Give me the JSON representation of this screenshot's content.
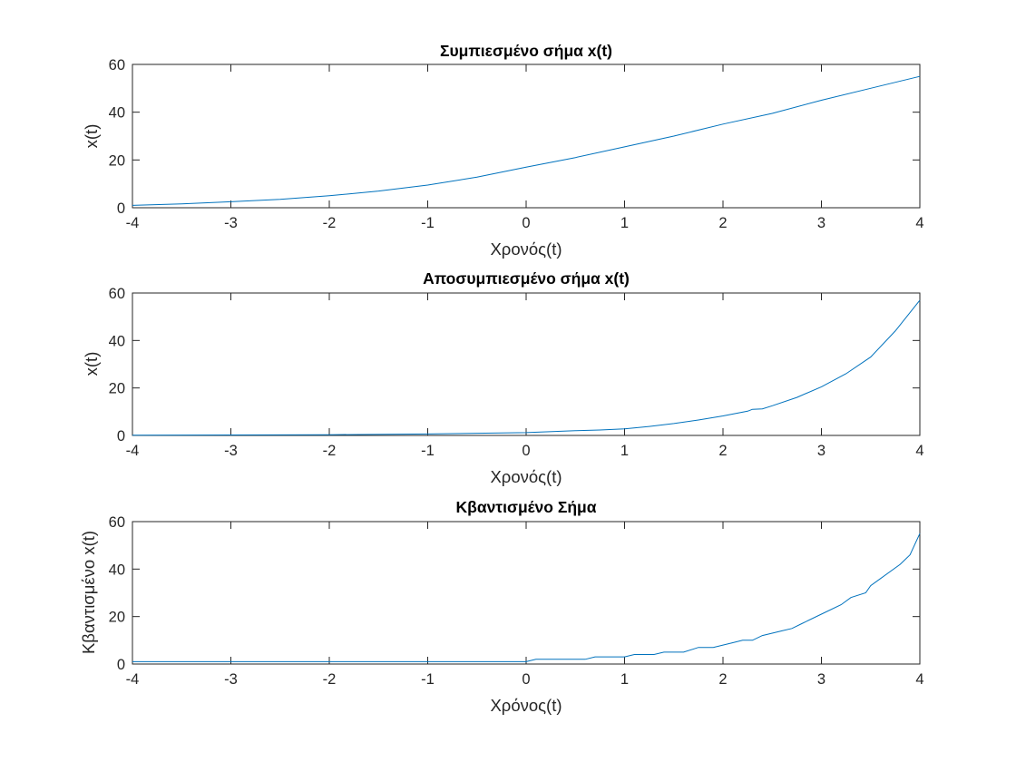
{
  "colors": {
    "series": "#0072BD",
    "axis": "#262626",
    "background": "#ffffff"
  },
  "chart_data": [
    {
      "type": "line",
      "title": "Συμπιεσμένο σήμα x(t)",
      "xlabel": "Χρονός(t)",
      "ylabel": "x(t)",
      "xlim": [
        -4,
        4
      ],
      "ylim": [
        0,
        60
      ],
      "xticks": [
        -4,
        -3,
        -2,
        -1,
        0,
        1,
        2,
        3,
        4
      ],
      "yticks": [
        0,
        20,
        40,
        60
      ],
      "grid": false,
      "series": [
        {
          "x": [
            -4,
            -3.5,
            -3,
            -2.5,
            -2,
            -1.5,
            -1,
            -0.5,
            0,
            0.5,
            1,
            1.5,
            2,
            2.5,
            3,
            3.5,
            4
          ],
          "y": [
            1.0,
            1.6,
            2.5,
            3.5,
            5.0,
            7.0,
            9.5,
            12.8,
            17.0,
            21.0,
            25.5,
            30.0,
            35.0,
            39.5,
            45.0,
            50.0,
            55.0
          ]
        }
      ]
    },
    {
      "type": "line",
      "title": "Αποσυμπιεσμένο σήμα x(t)",
      "xlabel": "Χρονός(t)",
      "ylabel": "x(t)",
      "xlim": [
        -4,
        4
      ],
      "ylim": [
        0,
        60
      ],
      "xticks": [
        -4,
        -3,
        -2,
        -1,
        0,
        1,
        2,
        3,
        4
      ],
      "yticks": [
        0,
        20,
        40,
        60
      ],
      "grid": false,
      "series": [
        {
          "x": [
            -4,
            -3,
            -2,
            -1,
            -0.5,
            0,
            0.5,
            0.75,
            1,
            1.25,
            1.5,
            1.75,
            2,
            2.25,
            2.3,
            2.4,
            2.5,
            2.75,
            3,
            3.25,
            3.5,
            3.75,
            4
          ],
          "y": [
            0.1,
            0.2,
            0.3,
            0.6,
            0.9,
            1.2,
            2.0,
            2.3,
            2.8,
            3.8,
            5.0,
            6.5,
            8.2,
            10.2,
            11.0,
            11.2,
            12.5,
            16.0,
            20.5,
            26.0,
            33.0,
            44.0,
            57.0
          ]
        }
      ]
    },
    {
      "type": "line",
      "title": "Κβαντισμένο Σήμα",
      "xlabel": "Χρόνος(t)",
      "ylabel": "Κβαντισμένο x(t)",
      "xlim": [
        -4,
        4
      ],
      "ylim": [
        0,
        60
      ],
      "xticks": [
        -4,
        -3,
        -2,
        -1,
        0,
        1,
        2,
        3,
        4
      ],
      "yticks": [
        0,
        20,
        40,
        60
      ],
      "grid": false,
      "series": [
        {
          "x": [
            -4,
            0.0,
            0.1,
            0.6,
            0.7,
            1.0,
            1.1,
            1.3,
            1.4,
            1.6,
            1.75,
            1.9,
            2.1,
            2.2,
            2.3,
            2.4,
            2.6,
            2.7,
            2.8,
            3.0,
            3.2,
            3.3,
            3.45,
            3.5,
            3.6,
            3.8,
            3.9,
            4.0
          ],
          "y": [
            1,
            1,
            2,
            2,
            3,
            3,
            4,
            4,
            5,
            5,
            7,
            7,
            9,
            10,
            10,
            12,
            14,
            15,
            17,
            21,
            25,
            28,
            30,
            33,
            36,
            42,
            46,
            55
          ]
        }
      ]
    }
  ]
}
